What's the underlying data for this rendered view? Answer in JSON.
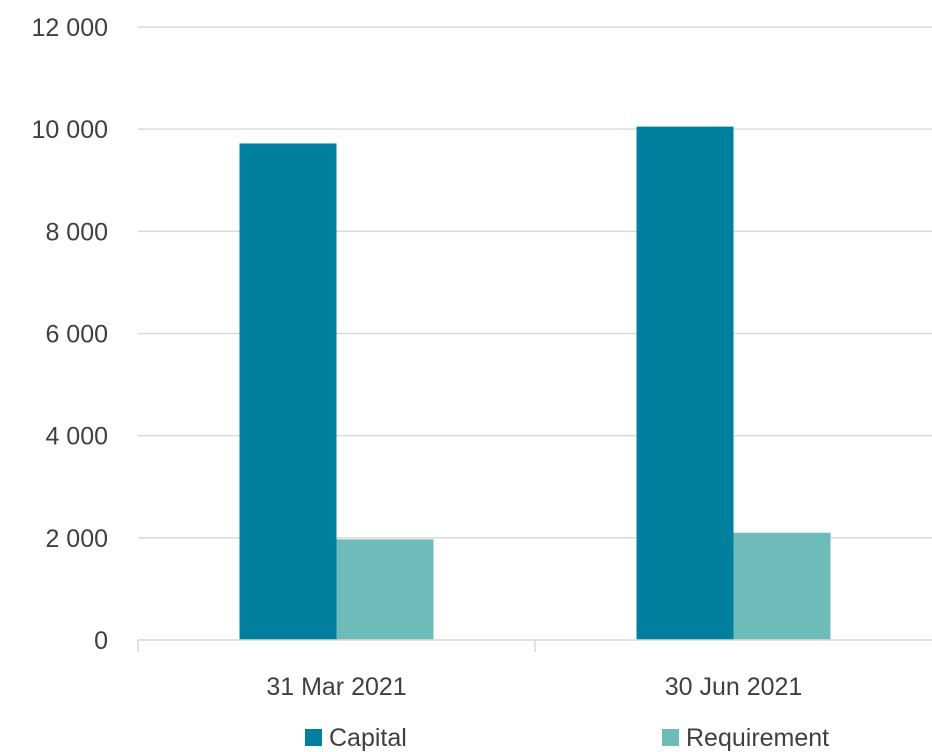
{
  "chart_data": {
    "type": "bar",
    "categories": [
      "31 Mar 2021",
      "30 Jun 2021"
    ],
    "series": [
      {
        "name": "Capital",
        "values": [
          9720,
          10050
        ],
        "color": "#00809E"
      },
      {
        "name": "Requirement",
        "values": [
          1970,
          2100
        ],
        "color": "#6EBCB9"
      }
    ],
    "ylim": [
      0,
      12000
    ],
    "yticks": [
      0,
      2000,
      4000,
      6000,
      8000,
      10000,
      12000
    ],
    "ytick_labels": [
      "0",
      "2 000",
      "4 000",
      "6 000",
      "8 000",
      "10 000",
      "12 000"
    ],
    "grid": true,
    "legend": "bottom",
    "gridline_color": "#D9D9D9",
    "axis_color": "#D9D9D9",
    "text_color": "#404040"
  }
}
